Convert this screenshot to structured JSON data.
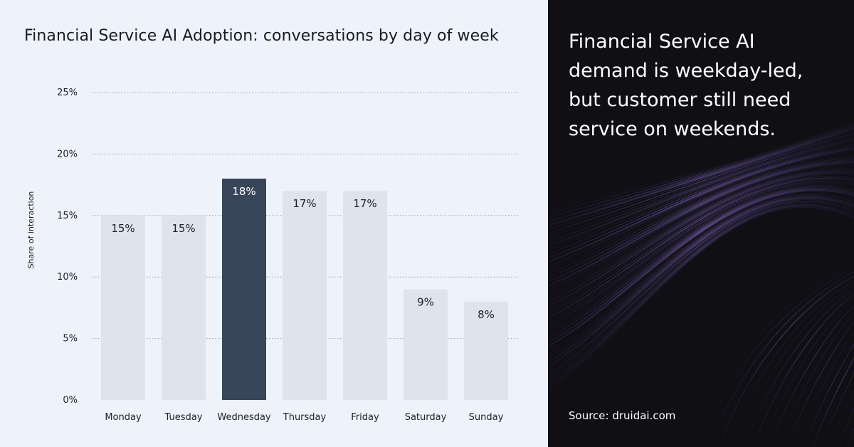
{
  "chart_data": {
    "type": "bar",
    "title": "Financial Service AI Adoption: conversations by day of week",
    "ylabel": "Share of interaction",
    "xlabel": "",
    "categories": [
      "Monday",
      "Tuesday",
      "Wednesday",
      "Thursday",
      "Friday",
      "Saturday",
      "Sunday"
    ],
    "values": [
      15,
      15,
      18,
      17,
      17,
      9,
      8
    ],
    "value_labels": [
      "15%",
      "15%",
      "18%",
      "17%",
      "17%",
      "9%",
      "8%"
    ],
    "highlight_category": "Wednesday",
    "ylim": [
      0,
      25
    ],
    "yticks": [
      0,
      5,
      10,
      15,
      20,
      25
    ],
    "ytick_labels": [
      "0%",
      "5%",
      "10%",
      "15%",
      "20%",
      "25%"
    ],
    "grid": true,
    "colors": {
      "bar": "#dfe4ec",
      "highlight": "#39465a",
      "label": "#1a1f2b",
      "highlight_label": "#ffffff",
      "grid": "#9aa1ad"
    }
  },
  "panel": {
    "headline": "Financial Service AI demand is weekday-led, but customer still need service on weekends.",
    "source": "Source: druidai.com"
  }
}
